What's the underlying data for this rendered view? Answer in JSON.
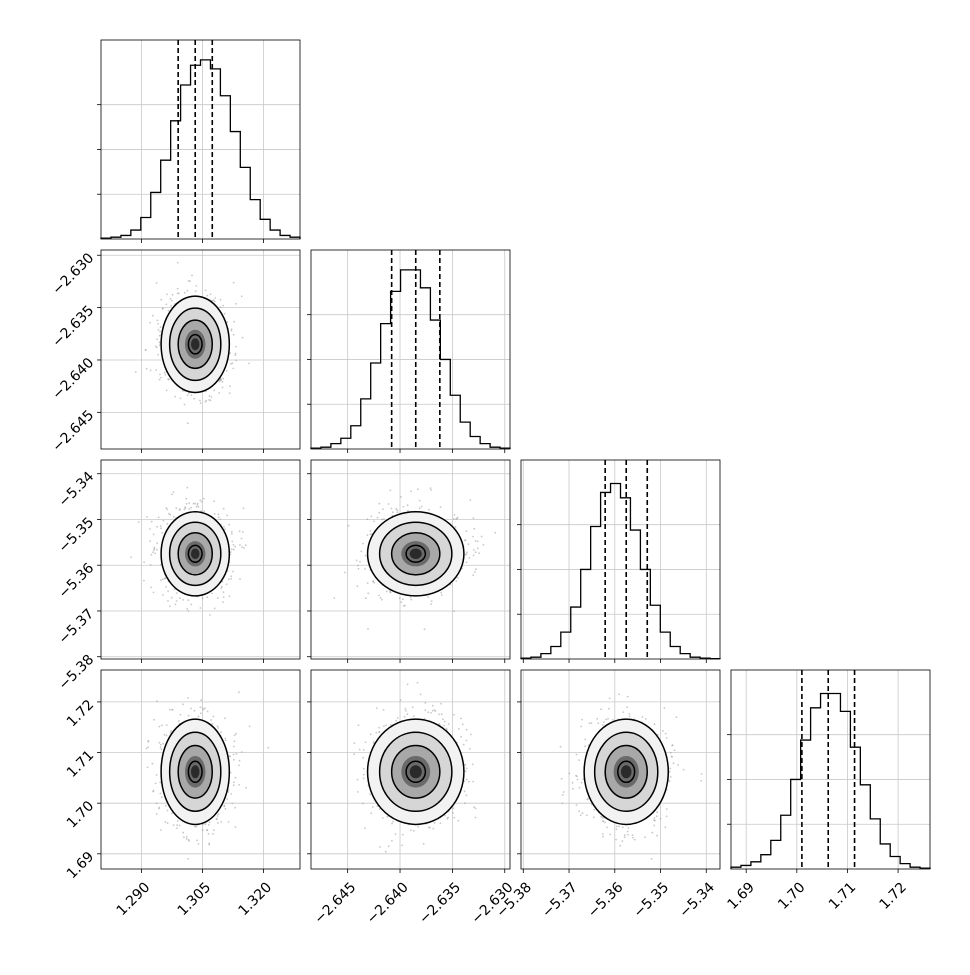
{
  "chart_data": {
    "type": "corner",
    "grid": true,
    "colors": {
      "hist": "#000000",
      "scatter": "#9a9a9a",
      "contour": "#000000",
      "quantile": "#000000",
      "grid": "#c8c8c8"
    },
    "quantiles": [
      0.16,
      0.5,
      0.84
    ],
    "params": [
      {
        "mean": 1.3032,
        "sd": 0.0042,
        "range": [
          1.28,
          1.329
        ],
        "ticks": [
          1.29,
          1.305,
          1.32
        ],
        "tick_labels": [
          "1.290",
          "1.305",
          "1.320"
        ]
      },
      {
        "mean": -2.6385,
        "sd": 0.0023,
        "range": [
          -2.6485,
          -2.6295
        ],
        "ticks": [
          -2.645,
          -2.64,
          -2.635,
          -2.63
        ],
        "tick_labels": [
          "−2.645",
          "−2.640",
          "−2.635",
          "−2.630"
        ]
      },
      {
        "mean": -5.3575,
        "sd": 0.0046,
        "range": [
          -5.3805,
          -5.337
        ],
        "ticks": [
          -5.38,
          -5.37,
          -5.36,
          -5.35,
          -5.34
        ],
        "tick_labels": [
          "−5.38",
          "−5.37",
          "−5.36",
          "−5.35",
          "−5.34"
        ]
      },
      {
        "mean": 1.7062,
        "sd": 0.0052,
        "range": [
          1.687,
          1.7263
        ],
        "ticks": [
          1.69,
          1.7,
          1.71,
          1.72
        ],
        "tick_labels": [
          "1.69",
          "1.70",
          "1.71",
          "1.72"
        ]
      }
    ],
    "histograms": [
      {
        "counts": [
          0.005,
          0.01,
          0.02,
          0.05,
          0.12,
          0.26,
          0.44,
          0.66,
          0.86,
          0.97,
          1.0,
          0.95,
          0.8,
          0.6,
          0.4,
          0.22,
          0.11,
          0.05,
          0.02,
          0.01
        ]
      },
      {
        "counts": [
          0.005,
          0.01,
          0.03,
          0.06,
          0.13,
          0.28,
          0.48,
          0.7,
          0.88,
          1.0,
          1.0,
          0.9,
          0.72,
          0.5,
          0.3,
          0.15,
          0.07,
          0.03,
          0.01,
          0.005
        ]
      },
      {
        "counts": [
          0.005,
          0.01,
          0.03,
          0.07,
          0.15,
          0.29,
          0.5,
          0.74,
          0.93,
          0.98,
          0.9,
          0.72,
          0.5,
          0.3,
          0.15,
          0.07,
          0.03,
          0.01,
          0.005,
          0.002
        ]
      },
      {
        "counts": [
          0.01,
          0.02,
          0.04,
          0.08,
          0.16,
          0.3,
          0.5,
          0.72,
          0.9,
          0.98,
          0.98,
          0.88,
          0.68,
          0.47,
          0.28,
          0.14,
          0.07,
          0.03,
          0.01,
          0.005
        ]
      }
    ]
  }
}
